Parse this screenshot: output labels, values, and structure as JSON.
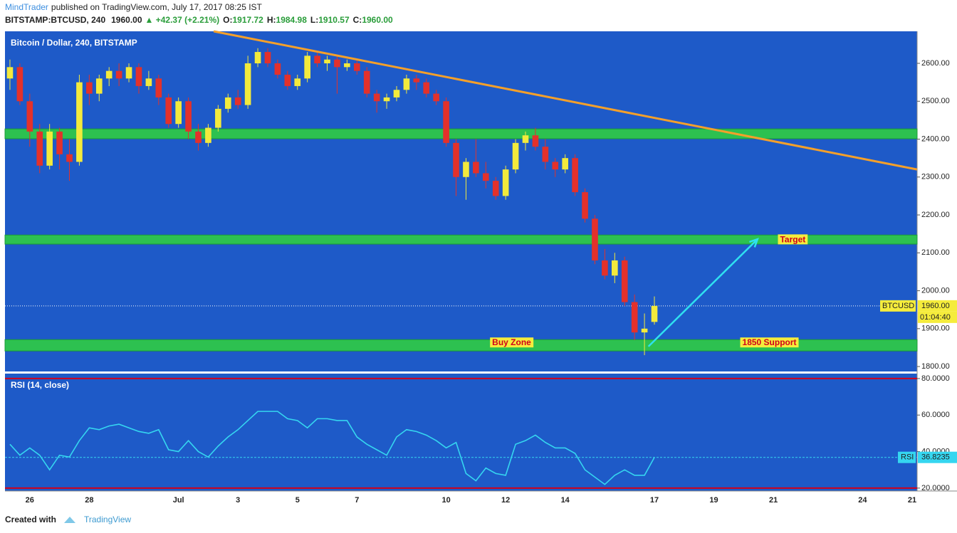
{
  "header": {
    "author": "MindTrader",
    "published": "published on TradingView.com, July 17, 2017 08:25 IST",
    "symbol": "BITSTAMP:BTCUSD, 240",
    "price": "1960.00",
    "change": "▲ +42.37 (+2.21%)",
    "o_label": "O:",
    "o": "1917.72",
    "h_label": "H:",
    "h": "1984.98",
    "l_label": "L:",
    "l": "1910.57",
    "c_label": "C:",
    "c": "1960.00"
  },
  "footer": {
    "created": "Created with",
    "brand": "TradingView"
  },
  "chart_data": {
    "type": "candlestick",
    "title": "Bitcoin / Dollar, 240, BITSTAMP",
    "categories": [
      null,
      null,
      "26",
      null,
      null,
      null,
      null,
      null,
      "28",
      null,
      null,
      null,
      null,
      null,
      null,
      null,
      null,
      "Jul",
      null,
      null,
      null,
      null,
      null,
      "3",
      null,
      null,
      null,
      null,
      null,
      "5",
      null,
      null,
      null,
      null,
      null,
      "7",
      null,
      null,
      null,
      null,
      null,
      null,
      null,
      null,
      "10",
      null,
      null,
      null,
      null,
      null,
      "12",
      null,
      null,
      null,
      null,
      null,
      "14",
      null,
      null,
      null,
      null,
      null,
      null,
      null,
      null,
      "17",
      null,
      null,
      null,
      null,
      null,
      "19",
      null,
      null,
      null,
      null,
      null,
      "21",
      null,
      null,
      null,
      null,
      null,
      null,
      null,
      null,
      "24",
      null,
      null,
      null,
      null,
      "21"
    ],
    "series": [
      {
        "name": "BTCUSD",
        "up_color": "#f3ea3c",
        "down_color": "#e3312b",
        "ohlc": [
          [
            2560,
            2610,
            2530,
            2590
          ],
          [
            2590,
            2600,
            2490,
            2500
          ],
          [
            2500,
            2520,
            2380,
            2420
          ],
          [
            2420,
            2440,
            2310,
            2330
          ],
          [
            2330,
            2440,
            2320,
            2420
          ],
          [
            2420,
            2430,
            2320,
            2360
          ],
          [
            2360,
            2400,
            2290,
            2340
          ],
          [
            2340,
            2570,
            2330,
            2550
          ],
          [
            2550,
            2570,
            2490,
            2520
          ],
          [
            2520,
            2570,
            2500,
            2560
          ],
          [
            2560,
            2590,
            2540,
            2580
          ],
          [
            2580,
            2600,
            2540,
            2560
          ],
          [
            2560,
            2600,
            2550,
            2590
          ],
          [
            2590,
            2600,
            2520,
            2540
          ],
          [
            2540,
            2580,
            2530,
            2560
          ],
          [
            2560,
            2570,
            2490,
            2510
          ],
          [
            2510,
            2520,
            2430,
            2440
          ],
          [
            2440,
            2510,
            2430,
            2500
          ],
          [
            2500,
            2510,
            2400,
            2420
          ],
          [
            2420,
            2440,
            2370,
            2390
          ],
          [
            2390,
            2440,
            2380,
            2430
          ],
          [
            2430,
            2490,
            2420,
            2480
          ],
          [
            2480,
            2520,
            2470,
            2510
          ],
          [
            2510,
            2530,
            2480,
            2490
          ],
          [
            2490,
            2620,
            2480,
            2600
          ],
          [
            2600,
            2640,
            2590,
            2630
          ],
          [
            2630,
            2640,
            2590,
            2600
          ],
          [
            2600,
            2610,
            2560,
            2570
          ],
          [
            2570,
            2580,
            2530,
            2540
          ],
          [
            2540,
            2570,
            2530,
            2560
          ],
          [
            2560,
            2630,
            2550,
            2620
          ],
          [
            2620,
            2630,
            2590,
            2600
          ],
          [
            2600,
            2620,
            2580,
            2610
          ],
          [
            2610,
            2620,
            2520,
            2590
          ],
          [
            2590,
            2610,
            2580,
            2600
          ],
          [
            2600,
            2610,
            2570,
            2580
          ],
          [
            2580,
            2590,
            2510,
            2520
          ],
          [
            2520,
            2530,
            2470,
            2500
          ],
          [
            2500,
            2520,
            2480,
            2510
          ],
          [
            2510,
            2540,
            2500,
            2530
          ],
          [
            2530,
            2570,
            2520,
            2560
          ],
          [
            2560,
            2570,
            2530,
            2550
          ],
          [
            2550,
            2560,
            2510,
            2520
          ],
          [
            2520,
            2530,
            2490,
            2500
          ],
          [
            2500,
            2510,
            2380,
            2390
          ],
          [
            2390,
            2400,
            2250,
            2300
          ],
          [
            2300,
            2350,
            2240,
            2340
          ],
          [
            2340,
            2400,
            2300,
            2310
          ],
          [
            2310,
            2340,
            2270,
            2290
          ],
          [
            2290,
            2300,
            2240,
            2250
          ],
          [
            2250,
            2330,
            2240,
            2320
          ],
          [
            2320,
            2400,
            2310,
            2390
          ],
          [
            2390,
            2420,
            2370,
            2410
          ],
          [
            2410,
            2430,
            2370,
            2380
          ],
          [
            2380,
            2400,
            2320,
            2340
          ],
          [
            2340,
            2350,
            2300,
            2320
          ],
          [
            2320,
            2360,
            2310,
            2350
          ],
          [
            2350,
            2360,
            2250,
            2260
          ],
          [
            2260,
            2270,
            2180,
            2190
          ],
          [
            2190,
            2200,
            2070,
            2080
          ],
          [
            2080,
            2110,
            2030,
            2040
          ],
          [
            2040,
            2100,
            2020,
            2080
          ],
          [
            2080,
            2090,
            1960,
            1970
          ],
          [
            1970,
            1990,
            1870,
            1890
          ],
          [
            1890,
            1940,
            1830,
            1900
          ],
          [
            1917.72,
            1984.98,
            1910.57,
            1960
          ],
          null,
          null,
          null,
          null,
          null,
          null,
          null,
          null,
          null,
          null,
          null,
          null,
          null,
          null,
          null,
          null,
          null,
          null,
          null,
          null,
          null,
          null,
          null,
          null,
          null,
          null
        ]
      }
    ],
    "ylim": [
      1787,
      2684.5
    ],
    "yticks": [
      {
        "value": 1800,
        "label": "1800.00"
      },
      {
        "value": 1900,
        "label": "1900.00"
      },
      {
        "value": 2000,
        "label": "2000.00"
      },
      {
        "value": 2100,
        "label": "2100.00"
      },
      {
        "value": 2200,
        "label": "2200.00"
      },
      {
        "value": 2300,
        "label": "2300.00"
      },
      {
        "value": 2400,
        "label": "2400.00"
      },
      {
        "value": 2500,
        "label": "2500.00"
      },
      {
        "value": 2600,
        "label": "2600.00"
      }
    ],
    "last": {
      "value": 1960,
      "label": "1960.00"
    },
    "countdown": "01:04:40",
    "zone_color": "#2ec74a",
    "zones": [
      {
        "from": 2401,
        "to": 2427
      },
      {
        "from": 2123,
        "to": 2147
      },
      {
        "from": 1841,
        "to": 1871
      }
    ],
    "trendline": {
      "x": [
        20.55,
        91.5
      ],
      "y": [
        2684.5,
        2320
      ],
      "color": "#f5a02a"
    },
    "arrow": {
      "x": [
        64.4,
        75.4
      ],
      "y": [
        1853,
        2136
      ],
      "color": "#2fe0f0"
    },
    "annotations": [
      {
        "text": "Target",
        "x": 78.96,
        "y": 2134
      },
      {
        "text": "Buy Zone",
        "x": 50.6,
        "y": 1862
      },
      {
        "text": "1850 Support",
        "x": 76.6,
        "y": 1862
      }
    ],
    "indicator": {
      "title": "RSI (14, close)",
      "name": "RSI",
      "color": "#35d6f0",
      "values": [
        44,
        38,
        42,
        38,
        30,
        38,
        37,
        46,
        53,
        52,
        54,
        55,
        53,
        51,
        50,
        52,
        41,
        40,
        46,
        40,
        37,
        43,
        48,
        52,
        57,
        62,
        62,
        62,
        58,
        57,
        53,
        58,
        58,
        57,
        57,
        48,
        44,
        41,
        38,
        48,
        52,
        51,
        49,
        46,
        42,
        45,
        28,
        24,
        31,
        28,
        27,
        44,
        46,
        49,
        45,
        42,
        42,
        39,
        30,
        26,
        22,
        27,
        30,
        27,
        27,
        36.8235,
        null,
        null,
        null,
        null,
        null,
        null,
        null,
        null,
        null,
        null,
        null,
        null,
        null,
        null,
        null,
        null,
        null,
        null,
        null,
        null,
        null,
        null,
        null,
        null,
        null,
        null
      ],
      "ylim": [
        18.4,
        82.7
      ],
      "yticks": [
        {
          "value": 20,
          "label": "20.0000"
        },
        {
          "value": 40,
          "label": "40.0000"
        },
        {
          "value": 60,
          "label": "60.0000"
        },
        {
          "value": 80,
          "label": "80.0000"
        }
      ],
      "bands": [
        80,
        20
      ],
      "band_color": "#d0021b",
      "last": {
        "value": 36.8235,
        "label": "36.8235"
      }
    }
  }
}
